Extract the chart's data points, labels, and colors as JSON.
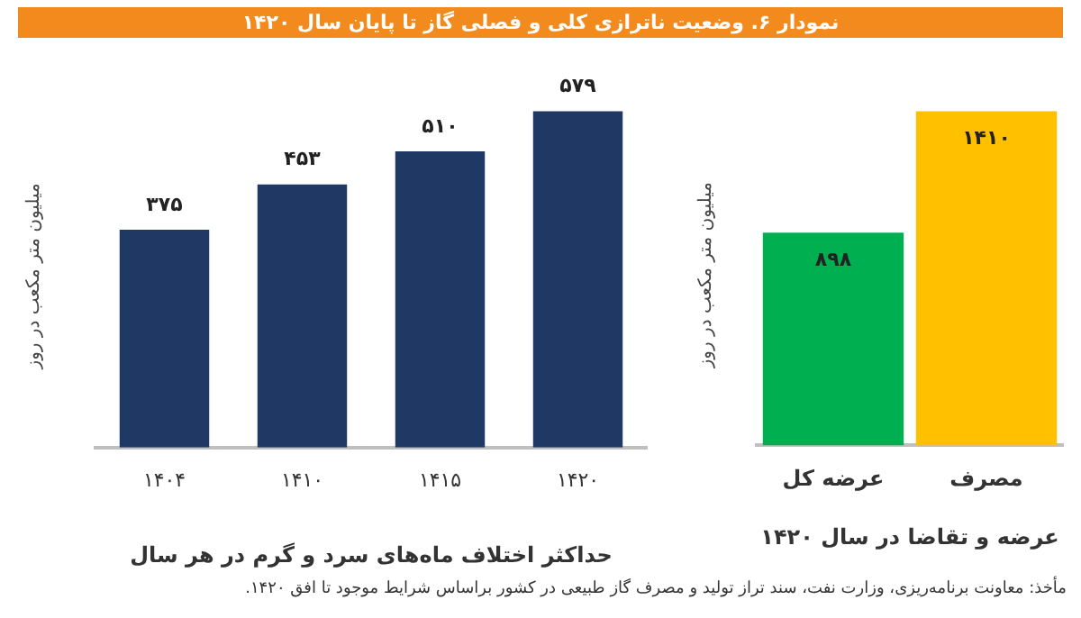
{
  "chart_data": [
    {
      "type": "bar",
      "title": "نمودار ۶. وضعیت ناترازی کلی و فصلی گاز تا پایان سال ۱۴۲۰",
      "xlabel": "حداکثر اختلاف ماه‌های سرد و گرم در هر سال",
      "ylabel": "میلیون متر مکعب در روز",
      "categories": [
        "۱۴۰۴",
        "۱۴۱۰",
        "۱۴۱۵",
        "۱۴۲۰"
      ],
      "values": [
        375,
        453,
        510,
        579
      ],
      "value_labels": [
        "۳۷۵",
        "۴۵۳",
        "۵۱۰",
        "۵۷۹"
      ],
      "color": "#203864",
      "legend": false,
      "grid": false
    },
    {
      "type": "bar",
      "xlabel": "عرضه و تقاضا در سال ۱۴۲۰",
      "ylabel": "میلیون متر مکعب در روز",
      "categories": [
        "عرضه کل",
        "مصرف"
      ],
      "values": [
        898,
        1410
      ],
      "value_labels": [
        "۸۹۸",
        "۱۴۱۰"
      ],
      "colors": [
        "#00b050",
        "#ffc000"
      ],
      "legend": false,
      "grid": false,
      "annotations": [
        "مأخذ: معاونت برنامه‌ریزی، وزارت نفت، سند تراز تولید و مصرف گاز طبیعی در کشور براساس شرایط موجود تا افق ۱۴۲۰."
      ]
    }
  ]
}
